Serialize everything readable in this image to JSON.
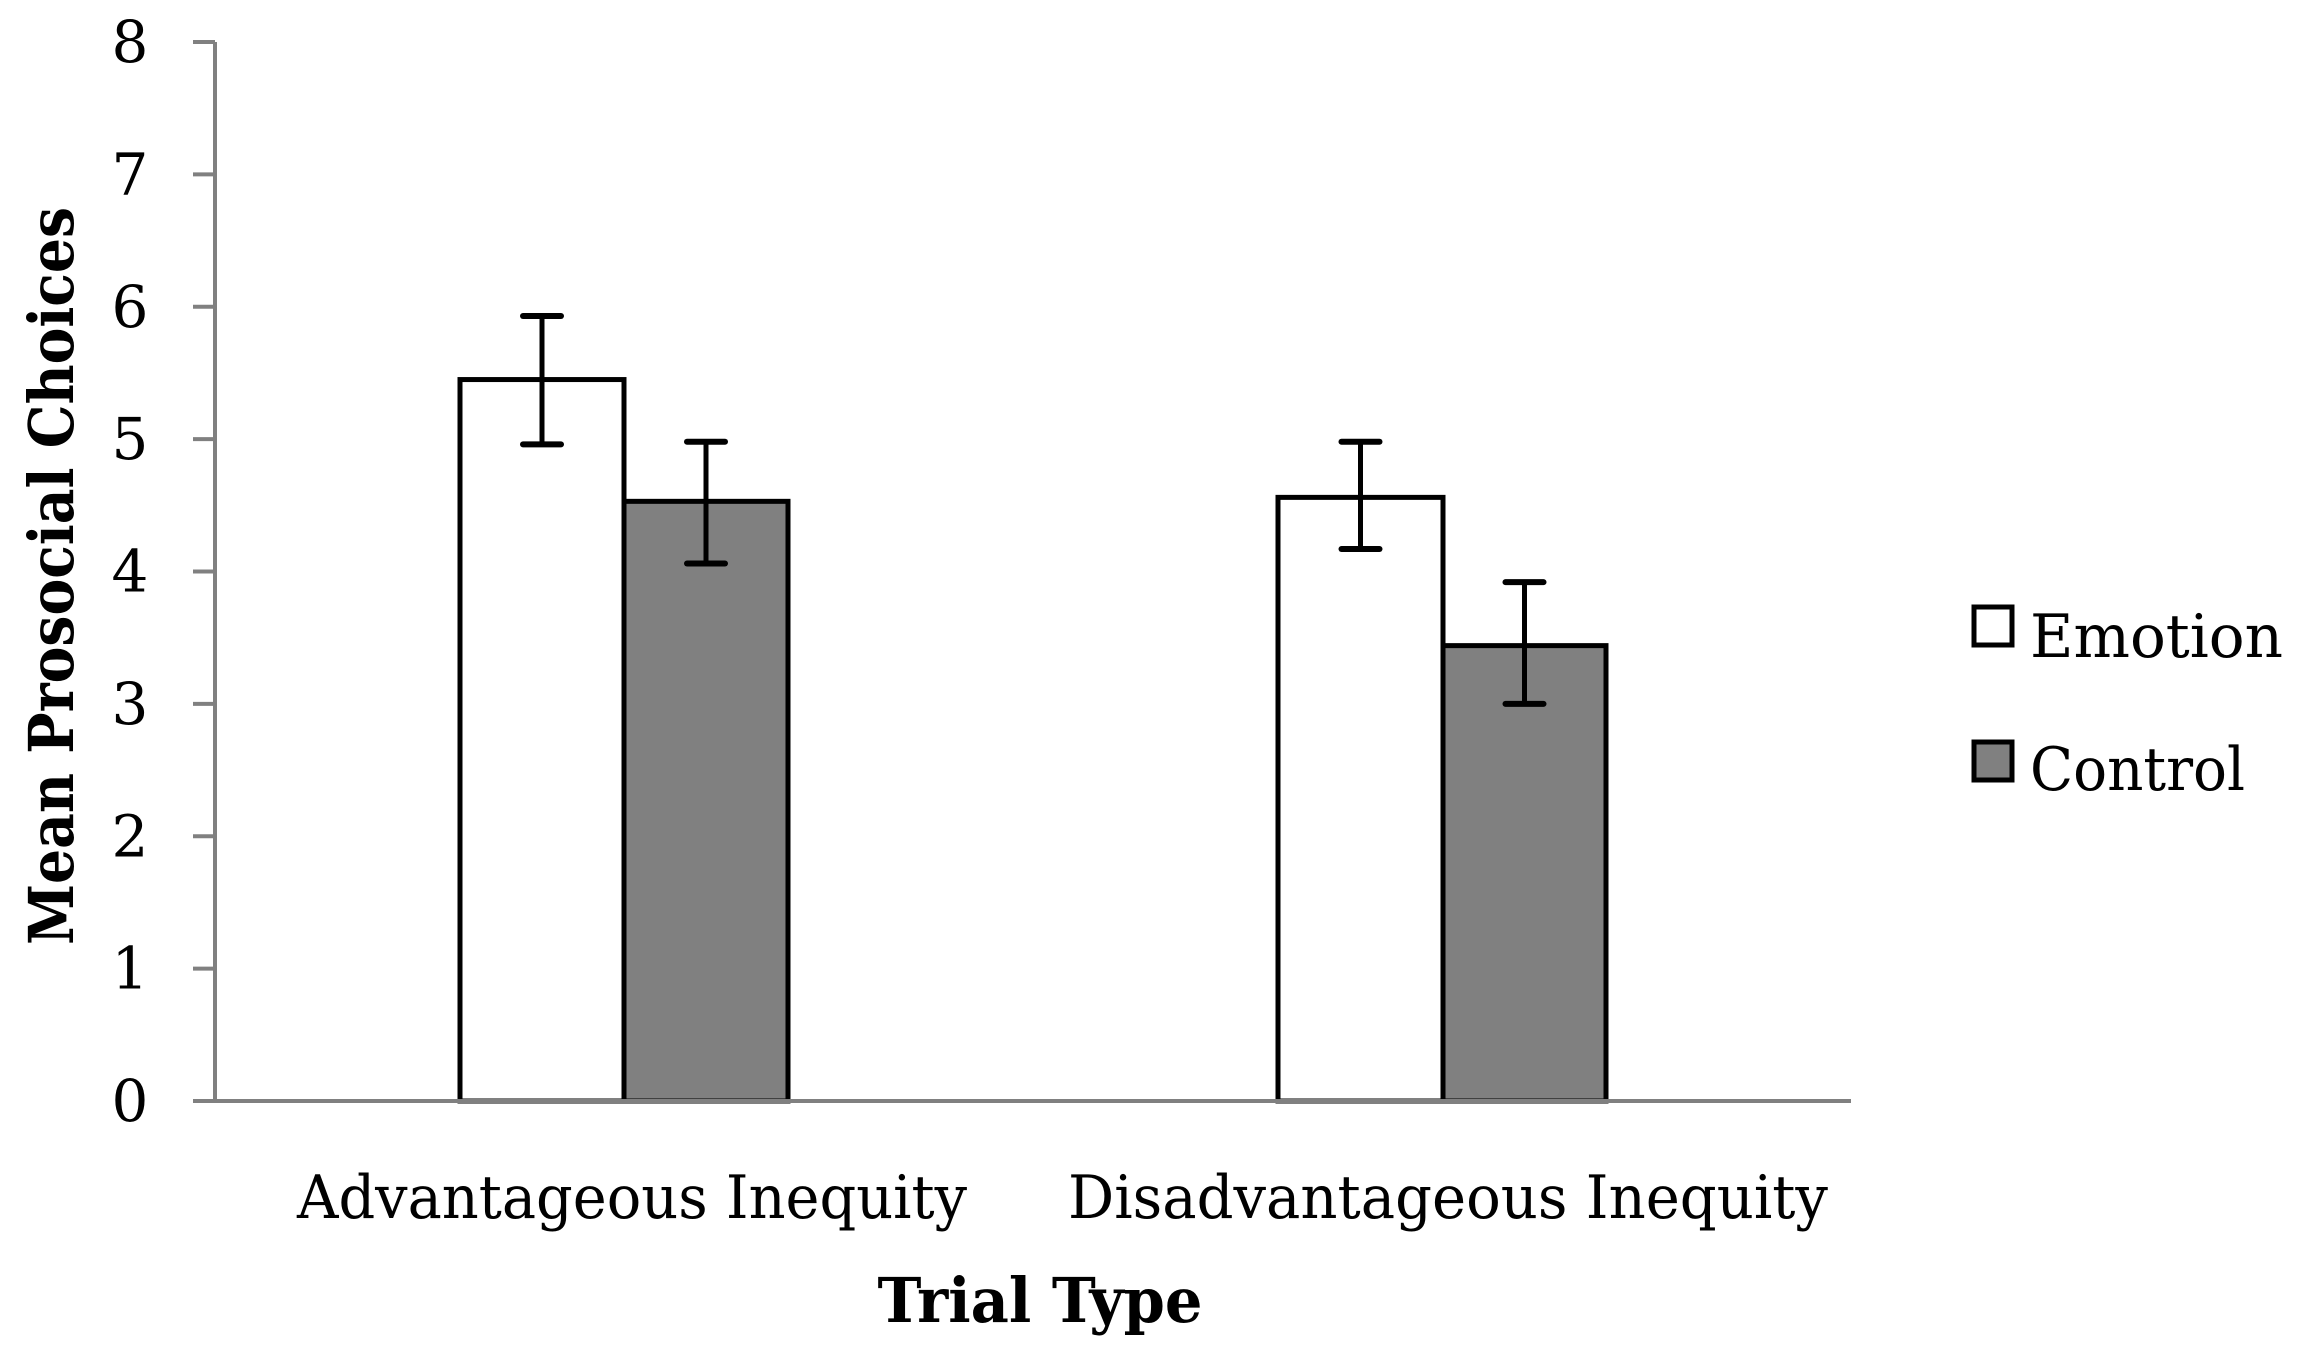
{
  "chart_data": {
    "type": "bar",
    "title": "",
    "xlabel": "Trial Type",
    "ylabel": "Mean Prosocial Choices",
    "ylim": [
      0,
      8
    ],
    "yticks": [
      0,
      1,
      2,
      3,
      4,
      5,
      6,
      7,
      8
    ],
    "grid": false,
    "legend_position": "right",
    "categories": [
      "Advantageous Inequity",
      "Disadvantageous Inequity"
    ],
    "series": [
      {
        "name": "Emotion",
        "color": "#ffffff",
        "values": [
          5.45,
          4.56
        ],
        "error_upper": [
          5.93,
          4.98
        ],
        "error_lower": [
          4.96,
          4.17
        ]
      },
      {
        "name": "Control",
        "color": "#808080",
        "values": [
          4.53,
          3.44
        ],
        "error_upper": [
          4.98,
          3.92
        ],
        "error_lower": [
          4.06,
          3.0
        ]
      }
    ]
  },
  "style": {
    "axis_color": "#808080",
    "bar_stroke": "#000000",
    "text_color": "#000000"
  }
}
